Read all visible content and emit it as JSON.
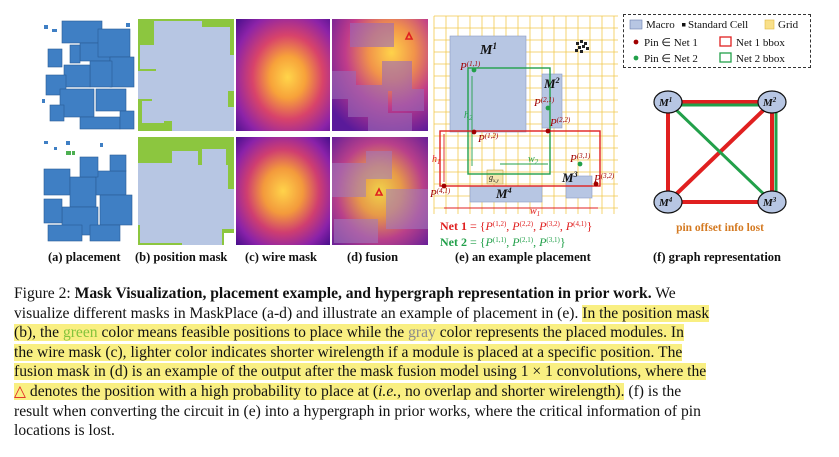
{
  "figure": {
    "panels": {
      "a": {
        "label": "(a) placement"
      },
      "b": {
        "label": "(b) position mask"
      },
      "c": {
        "label": "(c) wire mask"
      },
      "d": {
        "label": "(d) fusion"
      },
      "e": {
        "label": "(e) an example placement"
      },
      "f": {
        "label": "(f) graph representation"
      }
    },
    "example": {
      "macros": [
        "M",
        "M",
        "M",
        "M"
      ],
      "macro_sups": [
        "1",
        "2",
        "3",
        "4"
      ],
      "pins": [
        {
          "base": "P",
          "sup": "(1,1)"
        },
        {
          "base": "P",
          "sup": "(1,2)"
        },
        {
          "base": "P",
          "sup": "(2,1)"
        },
        {
          "base": "P",
          "sup": "(2,2)"
        },
        {
          "base": "P",
          "sup": "(3,1)"
        },
        {
          "base": "P",
          "sup": "(3,2)"
        },
        {
          "base": "P",
          "sup": "(4,1)"
        }
      ],
      "dims": {
        "h": "h",
        "w": "w",
        "sub1": "1",
        "sub2": "2",
        "gxy": "g",
        "gxy_sub": "x,y"
      },
      "net1": {
        "label": "Net 1",
        "eq": "= {",
        "items": [
          {
            "sup": "(1,2)",
            "sep": ", "
          },
          {
            "sup": "(2,2)",
            "sep": ", "
          },
          {
            "sup": "(3,2)",
            "sep": ", "
          },
          {
            "sup": "(4,1)",
            "sep": ""
          }
        ],
        "close": "}"
      },
      "net2": {
        "label": "Net 2",
        "eq": "= {",
        "items": [
          {
            "sup": "(1,1)",
            "sep": ", "
          },
          {
            "sup": "(2,1)",
            "sep": ", "
          },
          {
            "sup": "(3,1)",
            "sep": ""
          }
        ],
        "close": "}"
      }
    },
    "legend": {
      "macro": "Macro",
      "standard_cell": "Standard Cell",
      "grid": "Grid",
      "pin_net1": "Pin ∈ Net 1",
      "pin_net2": "Pin ∈ Net 2",
      "net1_bbox": "Net 1 bbox",
      "net2_bbox": "Net 2 bbox"
    },
    "graph": {
      "nodes": [
        {
          "base": "M",
          "sup": "1"
        },
        {
          "base": "M",
          "sup": "2"
        },
        {
          "base": "M",
          "sup": "3"
        },
        {
          "base": "M",
          "sup": "4"
        }
      ],
      "note": "pin offset info lost"
    },
    "colors": {
      "macro": "#b7c6e3",
      "net1": "#e02020",
      "net2": "#22a04a",
      "grid": "#f2c94c",
      "feasible": "#8cc63f",
      "note": "#d47a22"
    }
  },
  "caption": {
    "lines": [
      [
        {
          "t": "Figure 2:  ",
          "b": false
        },
        {
          "t": "Mask Visualization, placement example, and hypergraph representation in prior work.",
          "b": true
        },
        {
          "t": " We",
          "b": false
        }
      ],
      [
        {
          "t": "visualize different masks in MaskPlace (a-d) and illustrate an example of placement in (e). ",
          "b": false
        },
        {
          "t": "In the position mask",
          "h": true
        }
      ],
      [
        {
          "t": "(b), the ",
          "h": true
        },
        {
          "t": "green",
          "h": true,
          "c": "green-word"
        },
        {
          "t": " color means feasible positions to place while the ",
          "h": true
        },
        {
          "t": "gray",
          "h": true,
          "c": "gray-word"
        },
        {
          "t": " color represents the placed modules. In",
          "h": true
        }
      ],
      [
        {
          "t": "the wire mask (c), lighter color indicates shorter wirelength if a module is placed at a specific position. The",
          "h": true
        }
      ],
      [
        {
          "t": "fusion mask in (d) is an example of the output after the mask fusion model using 1 × 1 convolutions, where the",
          "h": true
        }
      ],
      [
        {
          "t": "△",
          "h": true,
          "c": "tri"
        },
        {
          "t": " denotes the position with a high probability to place at (",
          "h": true
        },
        {
          "t": "i.e.,",
          "h": true,
          "i": true
        },
        {
          "t": " no overlap and shorter wirelength).",
          "h": true
        },
        {
          "t": " (f) is the",
          "b": false
        }
      ],
      [
        {
          "t": "result when converting the circuit in (e) into a hypergraph in prior works, where the critical information of pin",
          "b": false
        }
      ],
      [
        {
          "t": "locations is lost.",
          "b": false
        }
      ]
    ]
  }
}
